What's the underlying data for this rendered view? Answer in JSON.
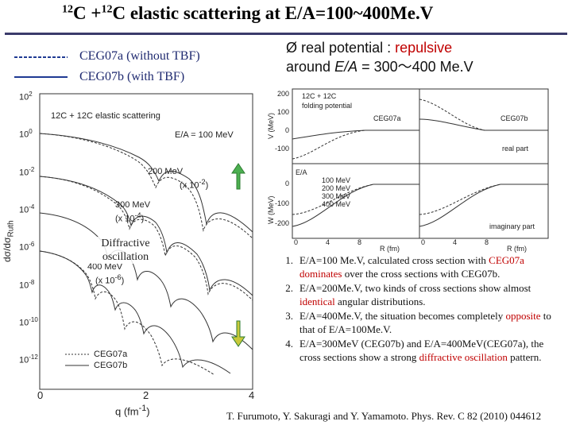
{
  "header": {
    "title": {
      "sup1": "12",
      "part1": "C +",
      "sup2": "12",
      "part2": "C elastic scattering at E/A=100~400Me.V"
    }
  },
  "legend": [
    "CEG07a (without TBF)",
    "CEG07b (with TBF)"
  ],
  "bullet": {
    "line1": "real potential : ",
    "highlight": "repulsive",
    "line2a": "around ",
    "line2b": "E/A",
    "line2c": " = 300～400 Me.V"
  },
  "left_plot": {
    "y_label": "dσ/dσ",
    "y_label_sub": "Ruth",
    "x_label": "q (fm",
    "x_label_sup": "-1",
    "x_label_end": ")",
    "yticks": [
      {
        "base": "10",
        "exp": "2"
      },
      {
        "base": "10",
        "exp": "0"
      },
      {
        "base": "10",
        "exp": "-2"
      },
      {
        "base": "10",
        "exp": "-4"
      },
      {
        "base": "10",
        "exp": "-6"
      },
      {
        "base": "10",
        "exp": "-8"
      },
      {
        "base": "10",
        "exp": "-10"
      },
      {
        "base": "10",
        "exp": "-12"
      }
    ],
    "xticks": [
      "0",
      "2",
      "4"
    ],
    "heading": "12C + 12C elastic scattering",
    "e100": "E/A = 100 MeV",
    "e200": "200 MeV",
    "s200": "(x 10",
    "s200e": "-2",
    "e300": "300 MeV",
    "s300": "(x 10",
    "s300e": "-4",
    "e400": "400 MeV",
    "s400": "(x 10",
    "s400e": "-6",
    "close": ")",
    "legend_a": "CEG07a",
    "legend_b": "CEG07b",
    "callout": "Diffractive oscillation"
  },
  "right_plot": {
    "top_yticks": [
      "200",
      "100",
      "0",
      "-100"
    ],
    "bottom_yticks": [
      "0",
      "-100",
      "-200"
    ],
    "xticks": [
      "0",
      "4",
      "8"
    ],
    "top_ylabel": "V (MeV)",
    "bottom_ylabel": "W (MeV)",
    "x_label": "R (fm)",
    "heading1": "12C + 12C",
    "heading2": "folding potential",
    "panel_a": "CEG07a",
    "panel_b": "CEG07b",
    "real": "real part",
    "imag": "imaginary part",
    "ea": "E/A",
    "energies": [
      "100 MeV",
      "200 MeV",
      "300 MeV",
      "400 MeV"
    ]
  },
  "notes": [
    {
      "number": "1.",
      "parts": [
        {
          "text": "E/A=100 Me.V,  calculated cross section with ",
          "highlight": false
        },
        {
          "text": "CEG07a dominates",
          "highlight": true
        },
        {
          "text": " over the cross sections with CEG07b.",
          "highlight": false
        }
      ]
    },
    {
      "number": "2.",
      "parts": [
        {
          "text": "E/A=200Me.V, two kinds of cross sections show almost ",
          "highlight": false
        },
        {
          "text": "identical",
          "highlight": true
        },
        {
          "text": " angular distributions.",
          "highlight": false
        }
      ]
    },
    {
      "number": "3.",
      "parts": [
        {
          "text": "E/A=400Me.V, the situation becomes completely ",
          "highlight": false
        },
        {
          "text": "opposite",
          "highlight": true
        },
        {
          "text": " to that of E/A=100Me.V.",
          "highlight": false
        }
      ]
    },
    {
      "number": "4.",
      "parts": [
        {
          "text": "E/A=300MeV (CEG07b) and E/A=400MeV(CEG07a), the cross sections show a strong ",
          "highlight": false
        },
        {
          "text": "diffractive oscillation",
          "highlight": true
        },
        {
          "text": " pattern.",
          "highlight": false
        }
      ]
    }
  ],
  "citation": "T. Furumoto, Y. Sakuragi and Y. Yamamoto. Phys. Rev. C 82 (2010) 044612"
}
